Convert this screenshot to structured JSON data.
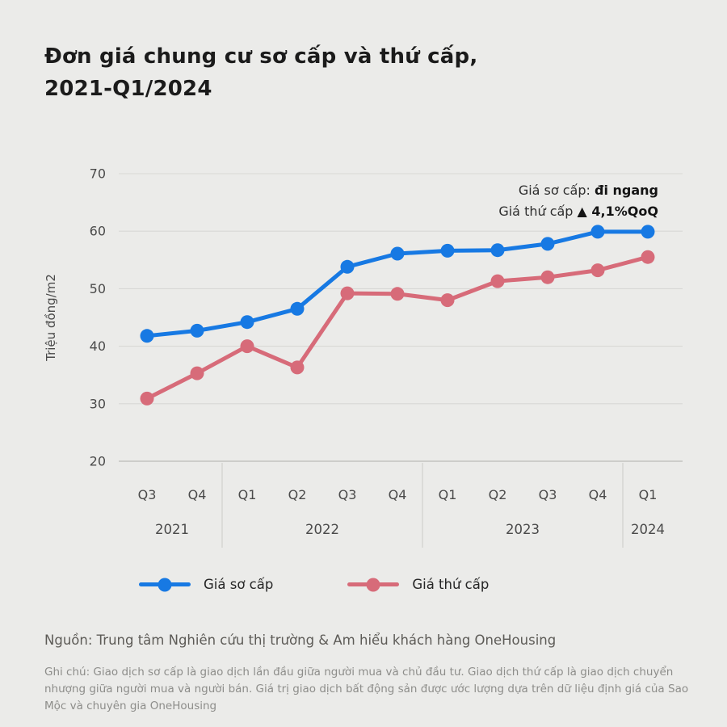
{
  "title": {
    "line1": "Đơn giá chung cư sơ cấp và thứ cấp,",
    "line2": "2021-Q1/2024"
  },
  "annotation": {
    "line1_regular": "Giá sơ cấp: ",
    "line1_bold": "đi ngang",
    "line2_regular": "Giá thứ cấp ",
    "line2_bold": "▲ 4,1%QoQ"
  },
  "legend": {
    "items": [
      {
        "label": "Giá sơ cấp",
        "color": "#1779e3"
      },
      {
        "label": "Giá thứ cấp",
        "color": "#d76b79"
      }
    ]
  },
  "source": "Nguồn: Trung tâm Nghiên cứu thị trường & Am hiểu khách hàng OneHousing",
  "note": "Ghi chú: Giao dịch sơ cấp là giao dịch lần đầu giữa người mua và chủ đầu tư. Giao dịch thứ cấp là giao dịch chuyển nhượng giữa người mua và người bán. Giá trị giao dịch bất động sản được ước lượng dựa trên dữ liệu định giá của Sao Mộc và chuyên gia OneHousing",
  "chart_data": {
    "type": "line",
    "title": "Đơn giá chung cư sơ cấp và thứ cấp, 2021-Q1/2024",
    "ylabel": "Triệu đồng/m2",
    "ylim": [
      20,
      70
    ],
    "yticks": [
      20,
      30,
      40,
      50,
      60,
      70
    ],
    "grid": true,
    "legend_position": "bottom",
    "categories": [
      "Q3",
      "Q4",
      "Q1",
      "Q2",
      "Q3",
      "Q4",
      "Q1",
      "Q2",
      "Q3",
      "Q4",
      "Q1"
    ],
    "year_groups": [
      {
        "label": "2021",
        "span": 2
      },
      {
        "label": "2022",
        "span": 4
      },
      {
        "label": "2023",
        "span": 4
      },
      {
        "label": "2024",
        "span": 1
      }
    ],
    "series": [
      {
        "name": "Giá sơ cấp",
        "color": "#1779e3",
        "values": [
          41.8,
          42.7,
          44.2,
          46.5,
          53.8,
          56.1,
          56.6,
          56.7,
          57.8,
          59.9,
          59.9
        ]
      },
      {
        "name": "Giá thứ cấp",
        "color": "#d76b79",
        "values": [
          30.9,
          35.3,
          40.0,
          36.3,
          49.2,
          49.1,
          48.0,
          51.3,
          52.0,
          53.2,
          55.5
        ]
      }
    ]
  },
  "colors": {
    "background": "#ebebe9",
    "grid": "#d8d8d5",
    "axis_line": "#c3c3c0",
    "separator": "#d0d0cd",
    "tick_text": "#4a4a4a"
  }
}
